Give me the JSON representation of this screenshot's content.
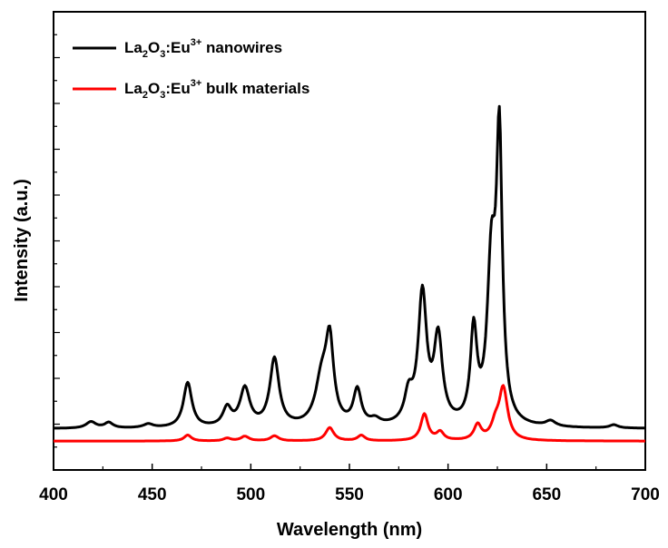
{
  "chart_data": {
    "type": "line",
    "xlabel": "Wavelength (nm)",
    "ylabel": "Intensity (a.u.)",
    "xlim": [
      400,
      700
    ],
    "ylim": [
      0,
      100
    ],
    "x_ticks": [
      400,
      450,
      500,
      550,
      600,
      650,
      700
    ],
    "x_tick_labels": [
      "400",
      "450",
      "500",
      "550",
      "600",
      "650",
      "700"
    ],
    "y_tick_labels_shown": false,
    "grid": false,
    "legend_position": "top-left",
    "series": [
      {
        "name": "La2O3:Eu3+ nanowires",
        "legend": {
          "pre": "La",
          "sub1": "2",
          "mid": "O",
          "sub2": "3",
          "post": ":Eu",
          "sup": "3+",
          "tail": " nanowires"
        },
        "color": "#000000",
        "baseline": 9.0,
        "peaks": [
          [
            419,
            1.4,
            3
          ],
          [
            428,
            1.2,
            2.5
          ],
          [
            448,
            0.8,
            3
          ],
          [
            468,
            9.8,
            2.6
          ],
          [
            488,
            4.0,
            2.6
          ],
          [
            497,
            8.3,
            3
          ],
          [
            512,
            14.8,
            2.8
          ],
          [
            536,
            10,
            3.8
          ],
          [
            540,
            17,
            2.4
          ],
          [
            554,
            7.7,
            2.4
          ],
          [
            563,
            1.2,
            3
          ],
          [
            580,
            6,
            2.5
          ],
          [
            587,
            28.3,
            2.6
          ],
          [
            595,
            18.5,
            2.6
          ],
          [
            613,
            20,
            2
          ],
          [
            622,
            34,
            2.5
          ],
          [
            626,
            60,
            1.8
          ],
          [
            652,
            1.2,
            3
          ],
          [
            684,
            0.7,
            2.5
          ]
        ]
      },
      {
        "name": "La2O3:Eu3+ bulk materials",
        "legend": {
          "pre": "La",
          "sub1": "2",
          "mid": "O",
          "sub2": "3",
          "post": ":Eu",
          "sup": "3+",
          "tail": " bulk materials"
        },
        "color": "#ff0000",
        "baseline": 6.3,
        "peaks": [
          [
            468,
            1.3,
            2.2
          ],
          [
            488,
            0.6,
            2.2
          ],
          [
            497,
            1.0,
            2.5
          ],
          [
            512,
            1.1,
            2.5
          ],
          [
            540,
            2.9,
            2.5
          ],
          [
            556,
            1.2,
            2.2
          ],
          [
            588,
            5.8,
            2.2
          ],
          [
            596,
            1.8,
            2.2
          ],
          [
            615,
            3.3,
            2.2
          ],
          [
            624,
            3,
            2.5
          ],
          [
            628,
            11.2,
            2.6
          ]
        ]
      }
    ]
  }
}
